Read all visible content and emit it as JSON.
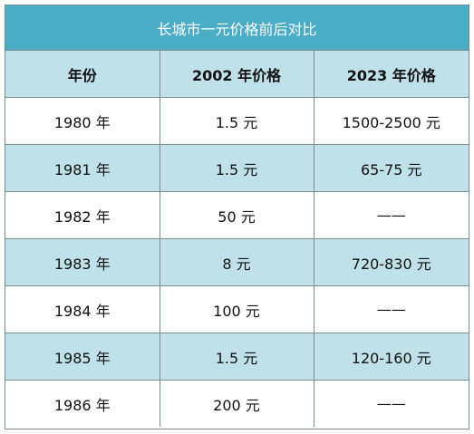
{
  "title": "长城市一元价格前后对比",
  "headers": [
    "年份",
    "2002 年价格",
    "2023 年价格"
  ],
  "rows": [
    [
      "1980 年",
      "1.5 元",
      "1500-2500 元"
    ],
    [
      "1981 年",
      "1.5 元",
      "65-75 元"
    ],
    [
      "1982 年",
      "50 元",
      "——"
    ],
    [
      "1983 年",
      "8 元",
      "720-830 元"
    ],
    [
      "1984 年",
      "100 元",
      "——"
    ],
    [
      "1985 年",
      "1.5 元",
      "120-160 元"
    ],
    [
      "1986 年",
      "200 元",
      "——"
    ]
  ],
  "colors": {
    "header_bg": "#4bacc6",
    "stripe_bg": "#bfe1ea",
    "border": "#7a8a90"
  }
}
